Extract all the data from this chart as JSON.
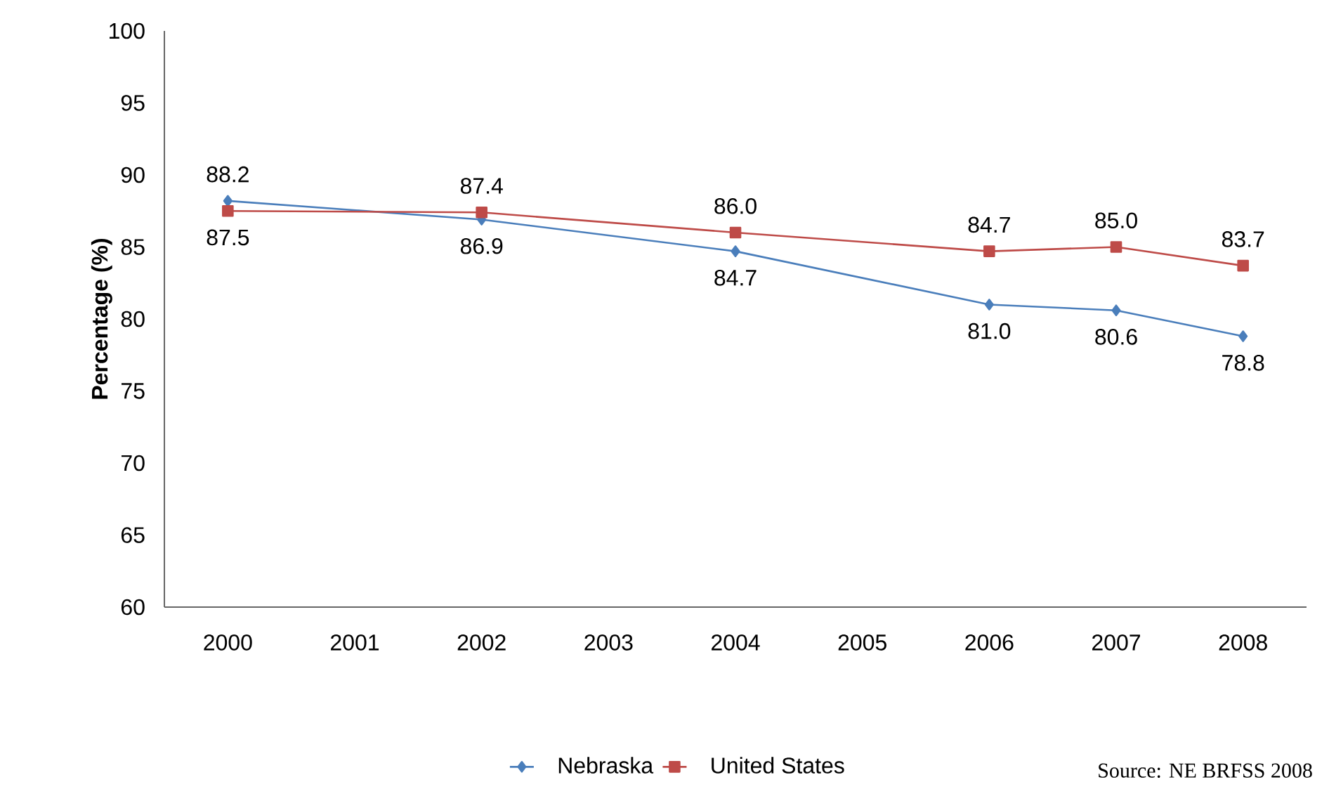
{
  "chart_data": {
    "type": "line",
    "ylabel": "Percentage (%)",
    "x": [
      2000,
      2002,
      2004,
      2006,
      2007,
      2008
    ],
    "xlim": [
      1999.5,
      2008.5
    ],
    "xticks": [
      2000,
      2001,
      2002,
      2003,
      2004,
      2005,
      2006,
      2007,
      2008
    ],
    "ylim": [
      60,
      100
    ],
    "yticks": [
      60,
      65,
      70,
      75,
      80,
      85,
      90,
      95,
      100
    ],
    "grid": false,
    "legend": "bottom",
    "line_style": "solid",
    "series": [
      {
        "name": "Nebraska",
        "color": "#4a7ebb",
        "marker": "diamond",
        "values": [
          88.2,
          86.9,
          84.7,
          81.0,
          80.6,
          78.8
        ],
        "value_labels": [
          "88.2",
          "86.9",
          "84.7",
          "81.0",
          "80.6",
          "78.8"
        ]
      },
      {
        "name": "United States",
        "color": "#be4b48",
        "marker": "square",
        "values": [
          87.5,
          87.4,
          86.0,
          84.7,
          85.0,
          83.7
        ],
        "value_labels": [
          "87.5",
          "87.4",
          "86.0",
          "84.7",
          "85.0",
          "83.7"
        ]
      }
    ],
    "annotations": [
      "Source: NE BRFSS 2008"
    ]
  }
}
